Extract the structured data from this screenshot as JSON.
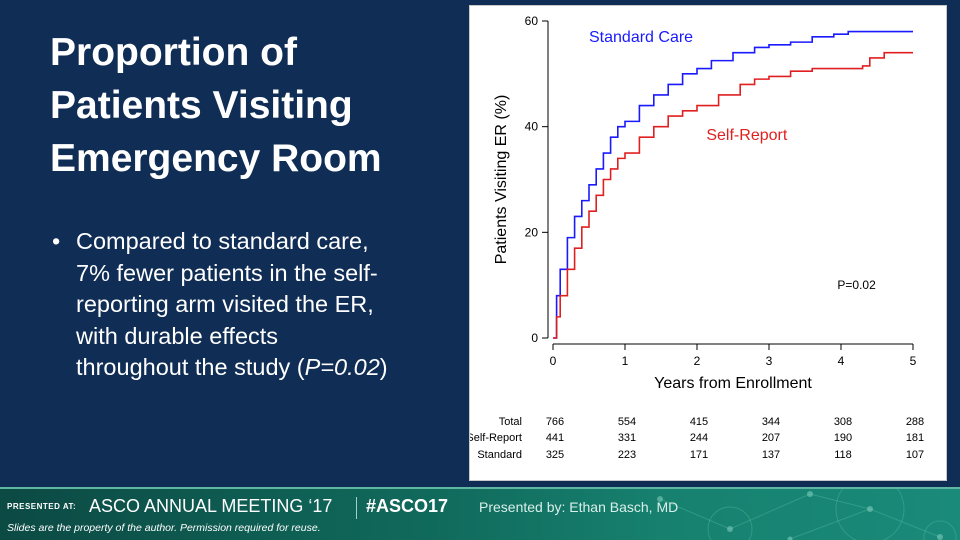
{
  "slide": {
    "title_lines": [
      "Proportion of",
      "Patients Visiting",
      "Emergency Room"
    ],
    "bullet": {
      "marker": "•",
      "lines": [
        "Compared to standard care,",
        "7% fewer patients in the self-",
        "reporting arm visited the ER,",
        "with durable effects"
      ],
      "last_line_prefix": "throughout the study (",
      "last_line_italic": "P=0.02",
      "last_line_suffix": ")"
    }
  },
  "chart_data": {
    "type": "line",
    "ylabel": "Patients Visiting ER (%)",
    "xlabel": "Years from Enrollment",
    "xlim": [
      0,
      5
    ],
    "ylim": [
      0,
      60
    ],
    "x_ticks": [
      0,
      1,
      2,
      3,
      4,
      5
    ],
    "y_ticks": [
      0,
      20,
      40,
      60
    ],
    "annotation": "P=0.02",
    "grid": false,
    "series": [
      {
        "name": "Standard Care",
        "color": "#1a1aff",
        "points": [
          [
            0,
            0
          ],
          [
            0.05,
            8
          ],
          [
            0.1,
            13
          ],
          [
            0.2,
            19
          ],
          [
            0.3,
            23
          ],
          [
            0.4,
            26
          ],
          [
            0.5,
            29
          ],
          [
            0.6,
            32
          ],
          [
            0.7,
            35
          ],
          [
            0.8,
            38
          ],
          [
            0.9,
            40
          ],
          [
            1.0,
            41
          ],
          [
            1.2,
            44
          ],
          [
            1.4,
            46
          ],
          [
            1.6,
            48
          ],
          [
            1.8,
            50
          ],
          [
            2.0,
            51
          ],
          [
            2.2,
            52.5
          ],
          [
            2.5,
            54
          ],
          [
            2.8,
            55
          ],
          [
            3.0,
            55.5
          ],
          [
            3.3,
            56
          ],
          [
            3.6,
            57
          ],
          [
            3.9,
            57.5
          ],
          [
            4.1,
            58
          ],
          [
            4.5,
            58
          ],
          [
            5.0,
            58
          ]
        ]
      },
      {
        "name": "Self-Report",
        "color": "#e02020",
        "points": [
          [
            0,
            0
          ],
          [
            0.05,
            4
          ],
          [
            0.1,
            8
          ],
          [
            0.2,
            13
          ],
          [
            0.3,
            17
          ],
          [
            0.4,
            21
          ],
          [
            0.5,
            24
          ],
          [
            0.6,
            27
          ],
          [
            0.7,
            30
          ],
          [
            0.8,
            32
          ],
          [
            0.9,
            34
          ],
          [
            1.0,
            35
          ],
          [
            1.2,
            38
          ],
          [
            1.4,
            40
          ],
          [
            1.6,
            42
          ],
          [
            1.8,
            43
          ],
          [
            2.0,
            44
          ],
          [
            2.3,
            46
          ],
          [
            2.6,
            48
          ],
          [
            2.8,
            49
          ],
          [
            3.0,
            49.5
          ],
          [
            3.3,
            50.5
          ],
          [
            3.6,
            51
          ],
          [
            4.0,
            51
          ],
          [
            4.3,
            51.5
          ],
          [
            4.4,
            53
          ],
          [
            4.6,
            54
          ],
          [
            5.0,
            54
          ]
        ]
      }
    ],
    "at_risk_table": {
      "x": [
        0,
        1,
        2,
        3,
        4,
        5
      ],
      "rows": [
        {
          "label": "Total",
          "values": [
            766,
            554,
            415,
            344,
            308,
            288
          ]
        },
        {
          "label": "Self-Report",
          "values": [
            441,
            331,
            244,
            207,
            190,
            181
          ]
        },
        {
          "label": "Standard",
          "values": [
            325,
            223,
            171,
            137,
            118,
            107
          ]
        }
      ]
    }
  },
  "footer": {
    "presented_at": "PRESENTED AT:",
    "meeting": "ASCO ANNUAL MEETING ‘17",
    "hashtag": "#ASCO17",
    "presenter": "Presented by: Ethan Basch, MD",
    "disclaimer": "Slides are the property of the author. Permission required for reuse."
  }
}
